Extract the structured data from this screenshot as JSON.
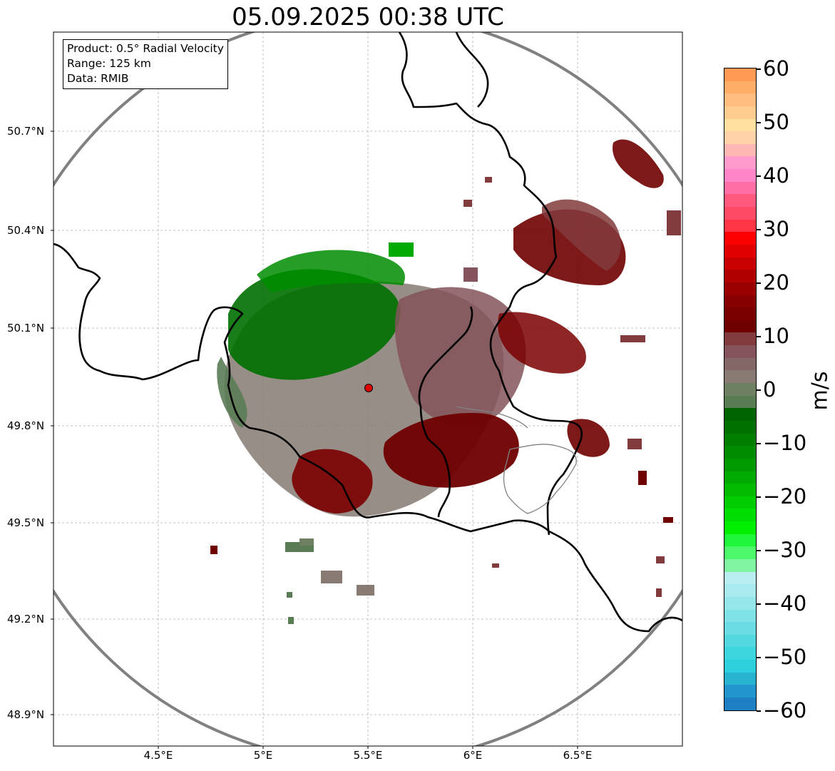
{
  "title": "05.09.2025 00:38 UTC",
  "info": {
    "product": "Product: 0.5° Radial Velocity",
    "range": "Range: 125 km",
    "source": "Data: RMIB"
  },
  "axes": {
    "lon_ticks": [
      "4.5°E",
      "5°E",
      "5.5°E",
      "6°E",
      "6.5°E"
    ],
    "lat_ticks": [
      "50.7°N",
      "50.4°N",
      "50.1°N",
      "49.8°N",
      "49.5°N",
      "49.2°N",
      "48.9°N"
    ]
  },
  "colorbar": {
    "unit": "m/s",
    "ticks": [
      "60",
      "50",
      "40",
      "30",
      "20",
      "10",
      "0",
      "−10",
      "−20",
      "−30",
      "−40",
      "−50",
      "−60"
    ],
    "colors": [
      "#ff9a55",
      "#ffad67",
      "#ffbe7d",
      "#ffcc8f",
      "#ffe0a0",
      "#ffd2a8",
      "#ffb7b3",
      "#ff9acc",
      "#ff85c8",
      "#ff6fa6",
      "#ff5a7e",
      "#ff4a66",
      "#ff3545",
      "#ff0000",
      "#e00000",
      "#c80000",
      "#b00000",
      "#9a0000",
      "#870000",
      "#7a0000",
      "#6f0000",
      "#823b3c",
      "#84535b",
      "#846868",
      "#867a73",
      "#6f7f62",
      "#5a7c55",
      "#006400",
      "#007000",
      "#007e00",
      "#008c00",
      "#009a00",
      "#00aa00",
      "#00bb00",
      "#00cc00",
      "#00dd00",
      "#00ee00",
      "#20f73a",
      "#4cf86a",
      "#80f4a0",
      "#b9eff0",
      "#a9eaee",
      "#95e6ea",
      "#7fe2e6",
      "#69dde3",
      "#52d9df",
      "#3cd6de",
      "#2ccfdc",
      "#27b3d0",
      "#2196cd",
      "#1e7fc5"
    ]
  },
  "radar": {
    "site": "RMIB radar",
    "site_color": "#e00000",
    "range_ring_color": "#808080"
  }
}
